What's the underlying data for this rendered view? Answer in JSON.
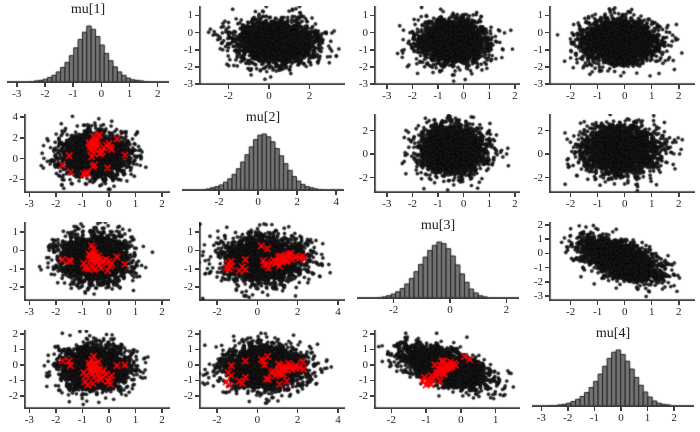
{
  "figure": {
    "background": "#ffffff",
    "axis_color": "#3d3d3d",
    "text_color": "#222222",
    "point_fill": "rgba(25,25,25,0.92)",
    "point_stroke": "rgba(0,0,0,0.55)",
    "hist_fill": "#757575",
    "hist_border": "#1e1e1e",
    "divergence_color": "#fb0006"
  },
  "chart_data": {
    "type": "pairs-plot",
    "description": "4x4 MCMC pairs plot: histograms of posterior draws on the diagonal, scatter plots of draw pairs off-diagonal, red x markers (divergent transitions) in the lower triangle",
    "variables": [
      "mu[1]",
      "mu[2]",
      "mu[3]",
      "mu[4]"
    ],
    "grid": {
      "rows": 4,
      "cols": 4
    },
    "panels": [
      {
        "type": "histogram",
        "title": "mu[1]",
        "x_range": [
          -3.35,
          2.4
        ],
        "x_ticks": [
          -3,
          -2,
          -1,
          0,
          1,
          2
        ],
        "bin_start": -2.55,
        "bin_width": 0.155,
        "heights": [
          1,
          2,
          3,
          5,
          8,
          12,
          18,
          26,
          35,
          47,
          61,
          76,
          89,
          100,
          94,
          81,
          66,
          51,
          38,
          27,
          18,
          12,
          7,
          4,
          3,
          2,
          1
        ]
      },
      {
        "type": "scatter",
        "x_var": "mu[2]",
        "y_var": "mu[1]",
        "x_range": [
          -3.45,
          3.75
        ],
        "y_range": [
          -3.05,
          1.55
        ],
        "x_ticks": [
          -2,
          0,
          2
        ],
        "y_ticks": [
          1,
          0,
          -1,
          -2,
          -3
        ],
        "n_points": 2600,
        "x_mean": 0.35,
        "x_sd": 1.0,
        "y_mean": -0.55,
        "y_sd": 0.62,
        "corr": 0,
        "show_divergences": false,
        "seed": 21
      },
      {
        "type": "scatter",
        "x_var": "mu[3]",
        "y_var": "mu[1]",
        "x_range": [
          -3.5,
          2.2
        ],
        "y_range": [
          -3.05,
          1.55
        ],
        "x_ticks": [
          -3,
          -2,
          -1,
          0,
          1,
          2
        ],
        "y_ticks": [
          1,
          0,
          -1,
          -2,
          -3
        ],
        "n_points": 2600,
        "x_mean": -0.45,
        "x_sd": 0.62,
        "y_mean": -0.55,
        "y_sd": 0.62,
        "corr": 0,
        "show_divergences": false,
        "seed": 31
      },
      {
        "type": "scatter",
        "x_var": "mu[4]",
        "y_var": "mu[1]",
        "x_range": [
          -2.8,
          2.6
        ],
        "y_range": [
          -3.05,
          1.55
        ],
        "x_ticks": [
          -2,
          -1,
          0,
          1,
          2
        ],
        "y_ticks": [
          1,
          0,
          -1,
          -2,
          -3
        ],
        "n_points": 2600,
        "x_mean": -0.15,
        "x_sd": 0.68,
        "y_mean": -0.55,
        "y_sd": 0.62,
        "corr": 0,
        "show_divergences": false,
        "seed": 41
      },
      {
        "type": "scatter",
        "x_var": "mu[1]",
        "y_var": "mu[2]",
        "x_range": [
          -3.2,
          2.3
        ],
        "y_range": [
          -3.3,
          4.3
        ],
        "x_ticks": [
          -3,
          -2,
          -1,
          0,
          1,
          2
        ],
        "y_ticks": [
          4,
          2,
          0,
          -2
        ],
        "n_points": 2600,
        "x_mean": -0.55,
        "x_sd": 0.62,
        "y_mean": 0.35,
        "y_sd": 1.0,
        "corr": 0,
        "show_divergences": true,
        "seed": 12
      },
      {
        "type": "histogram",
        "title": "mu[2]",
        "x_range": [
          -3.9,
          4.4
        ],
        "x_ticks": [
          -2,
          0,
          2,
          4
        ],
        "bin_start": -2.9,
        "bin_width": 0.22,
        "heights": [
          1,
          2,
          4,
          6,
          9,
          14,
          20,
          28,
          38,
          50,
          63,
          77,
          90,
          98,
          100,
          95,
          86,
          74,
          61,
          47,
          35,
          24,
          16,
          10,
          6,
          4,
          2,
          1
        ]
      },
      {
        "type": "scatter",
        "x_var": "mu[3]",
        "y_var": "mu[2]",
        "x_range": [
          -3.5,
          2.2
        ],
        "y_range": [
          -3.3,
          3.4
        ],
        "x_ticks": [
          -3,
          -2,
          -1,
          0,
          1,
          2
        ],
        "y_ticks": [
          2,
          0,
          -2
        ],
        "n_points": 2600,
        "x_mean": -0.45,
        "x_sd": 0.62,
        "y_mean": 0.35,
        "y_sd": 1.0,
        "corr": 0,
        "show_divergences": false,
        "seed": 32
      },
      {
        "type": "scatter",
        "x_var": "mu[4]",
        "y_var": "mu[2]",
        "x_range": [
          -2.8,
          2.6
        ],
        "y_range": [
          -3.3,
          3.4
        ],
        "x_ticks": [
          -2,
          -1,
          0,
          1,
          2
        ],
        "y_ticks": [
          2,
          0,
          -2
        ],
        "n_points": 2600,
        "x_mean": -0.15,
        "x_sd": 0.68,
        "y_mean": 0.35,
        "y_sd": 1.0,
        "corr": 0,
        "show_divergences": false,
        "seed": 42
      },
      {
        "type": "scatter",
        "x_var": "mu[1]",
        "y_var": "mu[3]",
        "x_range": [
          -3.2,
          2.3
        ],
        "y_range": [
          -2.75,
          1.55
        ],
        "x_ticks": [
          -3,
          -2,
          -1,
          0,
          1,
          2
        ],
        "y_ticks": [
          1,
          0,
          -1,
          -2
        ],
        "n_points": 2600,
        "x_mean": -0.55,
        "x_sd": 0.62,
        "y_mean": -0.45,
        "y_sd": 0.62,
        "corr": 0,
        "show_divergences": true,
        "seed": 13
      },
      {
        "type": "scatter",
        "x_var": "mu[2]",
        "y_var": "mu[3]",
        "x_range": [
          -2.9,
          4.35
        ],
        "y_range": [
          -2.75,
          1.55
        ],
        "x_ticks": [
          -2,
          0,
          2,
          4
        ],
        "y_ticks": [
          1,
          0,
          -1,
          -2
        ],
        "n_points": 2600,
        "x_mean": 0.35,
        "x_sd": 1.0,
        "y_mean": -0.45,
        "y_sd": 0.62,
        "corr": 0,
        "show_divergences": true,
        "seed": 23
      },
      {
        "type": "histogram",
        "title": "mu[3]",
        "x_range": [
          -3.3,
          2.45
        ],
        "x_ticks": [
          -2,
          0,
          2
        ],
        "bin_start": -2.6,
        "bin_width": 0.163,
        "heights": [
          1,
          2,
          4,
          7,
          11,
          17,
          25,
          35,
          47,
          60,
          73,
          85,
          94,
          100,
          97,
          88,
          75,
          59,
          43,
          28,
          16,
          9,
          4,
          2
        ]
      },
      {
        "type": "scatter",
        "x_var": "mu[4]",
        "y_var": "mu[3]",
        "x_range": [
          -2.8,
          2.6
        ],
        "y_range": [
          -3.35,
          2.2
        ],
        "x_ticks": [
          -2,
          -1,
          0,
          1,
          2
        ],
        "y_ticks": [
          2,
          1,
          0,
          -1,
          -2,
          -3
        ],
        "n_points": 2600,
        "x_mean": -0.15,
        "x_sd": 0.7,
        "y_mean": -0.45,
        "y_sd": 0.7,
        "corr": -0.55,
        "show_divergences": false,
        "seed": 43
      },
      {
        "type": "scatter",
        "x_var": "mu[1]",
        "y_var": "mu[4]",
        "x_range": [
          -3.2,
          2.3
        ],
        "y_range": [
          -2.85,
          2.25
        ],
        "x_ticks": [
          -3,
          -2,
          -1,
          0,
          1,
          2
        ],
        "y_ticks": [
          2,
          1,
          0,
          -1,
          -2
        ],
        "n_points": 2600,
        "x_mean": -0.55,
        "x_sd": 0.62,
        "y_mean": -0.15,
        "y_sd": 0.68,
        "corr": 0,
        "show_divergences": true,
        "seed": 14
      },
      {
        "type": "scatter",
        "x_var": "mu[2]",
        "y_var": "mu[4]",
        "x_range": [
          -2.9,
          4.35
        ],
        "y_range": [
          -2.85,
          2.25
        ],
        "x_ticks": [
          -2,
          0,
          2,
          4
        ],
        "y_ticks": [
          2,
          1,
          0,
          -1,
          -2
        ],
        "n_points": 2600,
        "x_mean": 0.35,
        "x_sd": 1.0,
        "y_mean": -0.15,
        "y_sd": 0.68,
        "corr": 0,
        "show_divergences": true,
        "seed": 24
      },
      {
        "type": "scatter",
        "x_var": "mu[3]",
        "y_var": "mu[4]",
        "x_range": [
          -2.5,
          1.7
        ],
        "y_range": [
          -2.85,
          2.25
        ],
        "x_ticks": [
          -2,
          -1,
          0,
          1
        ],
        "y_ticks": [
          2,
          1,
          0,
          -1,
          -2
        ],
        "n_points": 2600,
        "x_mean": -0.45,
        "x_sd": 0.6,
        "y_mean": -0.15,
        "y_sd": 0.65,
        "corr": -0.55,
        "show_divergences": true,
        "seed": 34
      },
      {
        "type": "histogram",
        "title": "mu[4]",
        "x_range": [
          -3.35,
          2.75
        ],
        "x_ticks": [
          -3,
          -2,
          -1,
          0,
          1,
          2
        ],
        "bin_start": -2.75,
        "bin_width": 0.17,
        "heights": [
          1,
          1,
          2,
          3,
          5,
          8,
          12,
          17,
          24,
          33,
          44,
          57,
          71,
          85,
          96,
          100,
          92,
          80,
          66,
          51,
          37,
          25,
          16,
          9,
          5,
          3,
          2
        ]
      }
    ],
    "divergences": {
      "marker": "x",
      "color": "#fb0006",
      "draws": {
        "mu[1]": [
          -0.62,
          -0.55,
          -0.7,
          -0.48,
          -0.6,
          -0.52,
          -0.66,
          -0.58,
          -0.45,
          -0.72,
          -0.64,
          -0.5,
          -0.57,
          -0.68,
          -0.43,
          -0.75,
          -0.35,
          0.3,
          0.6,
          -1.5,
          -1.75,
          -1.45,
          -0.95,
          -0.85,
          -0.9,
          -0.8,
          -0.6,
          -0.55,
          -0.35,
          -0.3,
          -0.25,
          -0.2,
          -0.1,
          0.0,
          0.05,
          0.1,
          -0.05,
          -0.4,
          -0.65,
          -0.58,
          -0.52,
          -0.63
        ],
        "mu[2]": [
          1.22,
          1.35,
          1.1,
          1.48,
          1.6,
          0.95,
          1.28,
          1.05,
          1.72,
          1.4,
          1.15,
          1.9,
          2.1,
          0.8,
          1.25,
          1.55,
          2.3,
          1.9,
          0.35,
          0.3,
          -0.6,
          -1.3,
          -1.45,
          -1.3,
          -1.55,
          -1.4,
          -0.75,
          -0.6,
          0.45,
          0.55,
          0.7,
          1.05,
          1.3,
          1.45,
          1.1,
          0.9,
          -0.9,
          2.25,
          0.2,
          0.5,
          1.65,
          1.2
        ],
        "mu[3]": [
          -0.35,
          -0.42,
          -0.3,
          -0.55,
          -0.28,
          -0.6,
          -0.45,
          -0.38,
          -0.5,
          -0.25,
          -0.48,
          -0.33,
          -0.4,
          -0.52,
          -0.62,
          -0.2,
          -0.45,
          -0.35,
          -0.75,
          -0.55,
          -0.5,
          -0.6,
          -0.7,
          -0.85,
          -0.95,
          -1.0,
          -0.9,
          -1.05,
          -0.8,
          -0.95,
          -0.65,
          -0.55,
          -0.5,
          -0.6,
          -0.85,
          -0.7,
          -1.1,
          -0.3,
          0.25,
          0.1,
          -0.15,
          -0.4
        ],
        "mu[4]": [
          -0.15,
          -0.25,
          -0.05,
          -0.35,
          -0.1,
          -0.45,
          -0.2,
          0.05,
          -0.3,
          -0.12,
          -0.55,
          -0.22,
          -0.18,
          -0.4,
          -0.6,
          0.1,
          -0.28,
          -0.05,
          0.0,
          0.25,
          0.25,
          -0.05,
          -0.5,
          -0.7,
          -1.1,
          -1.3,
          -1.2,
          -0.8,
          -0.9,
          -0.95,
          -0.5,
          -0.35,
          -0.6,
          -1.05,
          -1.25,
          -0.7,
          -1.05,
          0.2,
          0.35,
          0.55,
          -0.02,
          -0.18
        ]
      }
    }
  }
}
